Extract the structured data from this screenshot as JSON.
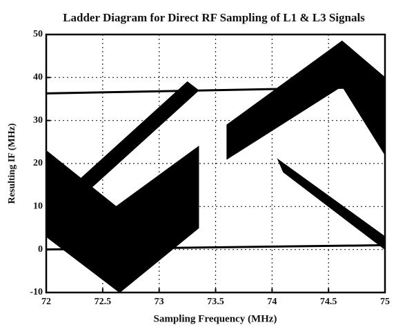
{
  "chart_data": {
    "type": "ladder",
    "title": "Ladder Diagram for Direct RF Sampling of L1 & L3 Signals",
    "xlabel": "Sampling Frequency (MHz)",
    "ylabel": "Resulting IF (MHz)",
    "xlim": [
      72,
      75
    ],
    "ylim": [
      -10,
      50
    ],
    "xticks": [
      72,
      72.5,
      73,
      73.5,
      74,
      74.5,
      75
    ],
    "yticks": [
      -10,
      0,
      10,
      20,
      30,
      40,
      50
    ],
    "grid": true,
    "series": [
      {
        "color": "#000000",
        "fill": true,
        "x": [
          72,
          72.62,
          73.35,
          73.35,
          72.65,
          72
        ],
        "values": [
          23,
          10,
          24,
          5,
          -10,
          3
        ]
      },
      {
        "color": "#000000",
        "fill": true,
        "x": [
          72.2,
          73.25,
          73.35,
          72.3
        ],
        "values": [
          14,
          39,
          37,
          12
        ]
      },
      {
        "color": "#000000",
        "fill": true,
        "x": [
          73.6,
          74.62,
          75,
          75,
          74.62,
          73.6
        ],
        "values": [
          29,
          48.5,
          40,
          22,
          38,
          21
        ]
      },
      {
        "color": "#000000",
        "fill": true,
        "x": [
          74.05,
          75,
          75,
          74.1
        ],
        "values": [
          21,
          3,
          0,
          18
        ]
      },
      {
        "color": "#000000",
        "fill": false,
        "x": [
          72,
          75
        ],
        "values": [
          36.3,
          37.8
        ]
      },
      {
        "color": "#000000",
        "fill": false,
        "x": [
          72,
          75
        ],
        "values": [
          0,
          1
        ]
      }
    ]
  }
}
